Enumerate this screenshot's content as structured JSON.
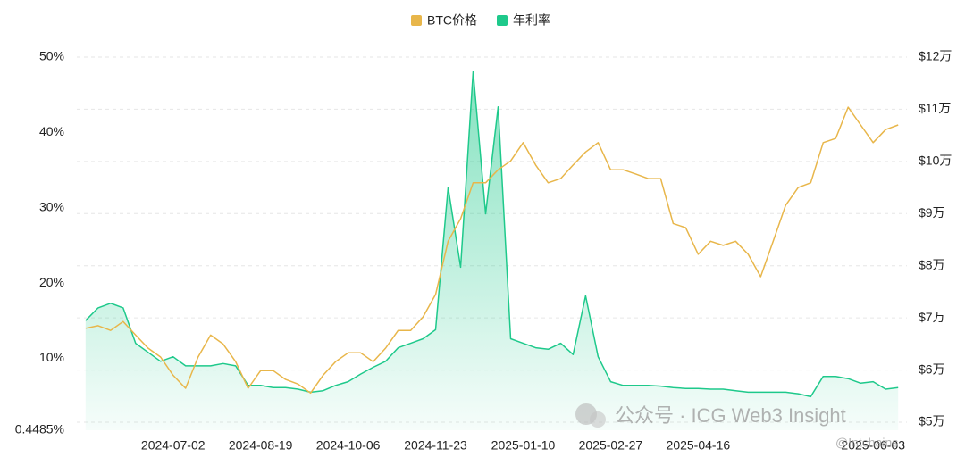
{
  "chart_data": {
    "type": "line",
    "categories": [
      null,
      null,
      null,
      null,
      null,
      null,
      null,
      "2024-07-02",
      null,
      null,
      null,
      null,
      null,
      null,
      "2024-08-19",
      null,
      null,
      null,
      null,
      null,
      null,
      "2024-10-06",
      null,
      null,
      null,
      null,
      null,
      null,
      "2024-11-23",
      null,
      null,
      null,
      null,
      null,
      null,
      "2025-01-10",
      null,
      null,
      null,
      null,
      null,
      null,
      "2025-02-27",
      null,
      null,
      null,
      null,
      null,
      null,
      "2025-04-16",
      null,
      null,
      null,
      null,
      null,
      null,
      null,
      null,
      null,
      null,
      null,
      null,
      null,
      "2025-06-03",
      null,
      null
    ],
    "series": [
      {
        "name": "BTC价格",
        "color": "#e8b64a",
        "axis": "y2",
        "values": [
          68000,
          68500,
          67600,
          69300,
          66700,
          64200,
          62500,
          59000,
          56500,
          62500,
          66700,
          65000,
          61600,
          56500,
          59900,
          59900,
          58200,
          57300,
          55600,
          59000,
          61600,
          63300,
          63300,
          61600,
          64200,
          67600,
          67600,
          70200,
          74500,
          84700,
          89000,
          95900,
          95900,
          98400,
          100100,
          103600,
          99300,
          95900,
          96700,
          99300,
          101800,
          103600,
          98400,
          98400,
          97600,
          96700,
          96700,
          88100,
          87300,
          82200,
          84700,
          83900,
          84700,
          82200,
          77900,
          84700,
          91600,
          95000,
          95900,
          103600,
          104400,
          110400,
          107000,
          103600,
          106100,
          107000
        ]
      },
      {
        "name": "年利率",
        "color": "#1ec98b",
        "values": [
          15.0,
          16.7,
          17.3,
          16.7,
          12.0,
          10.8,
          9.6,
          10.2,
          9.0,
          9.0,
          9.0,
          9.3,
          9.0,
          6.4,
          6.4,
          6.1,
          6.1,
          5.9,
          5.5,
          5.7,
          6.4,
          6.9,
          7.9,
          8.8,
          9.6,
          11.4,
          12.0,
          12.6,
          13.8,
          32.7,
          22.1,
          48.1,
          29.2,
          43.4,
          12.6,
          12.0,
          11.4,
          11.2,
          12.0,
          10.5,
          18.3,
          10.2,
          6.9,
          6.4,
          6.4,
          6.4,
          6.3,
          6.1,
          6.0,
          6.0,
          5.9,
          5.9,
          5.7,
          5.5,
          5.5,
          5.5,
          5.5,
          5.3,
          4.9,
          7.6,
          7.6,
          7.3,
          6.7,
          6.9,
          5.9,
          6.1
        ]
      }
    ],
    "ylim": [
      0.4485,
      50
    ],
    "yticks": [
      {
        "value": 0.4485,
        "label": "0.4485%"
      },
      {
        "value": 10,
        "label": "10%"
      },
      {
        "value": 20,
        "label": "20%"
      },
      {
        "value": 30,
        "label": "30%"
      },
      {
        "value": 40,
        "label": "40%"
      },
      {
        "value": 50,
        "label": "50%"
      }
    ],
    "y2lim": [
      48460,
      120000
    ],
    "y2ticks": [
      {
        "value": 50000,
        "label": "$5万"
      },
      {
        "value": 60000,
        "label": "$6万"
      },
      {
        "value": 70000,
        "label": "$7万"
      },
      {
        "value": 80000,
        "label": "$8万"
      },
      {
        "value": 90000,
        "label": "$9万"
      },
      {
        "value": 100000,
        "label": "$10万"
      },
      {
        "value": 110000,
        "label": "$11万"
      },
      {
        "value": 120000,
        "label": "$12万"
      }
    ],
    "grid": true,
    "legend": "top",
    "annotations": [
      "公众号 · ICG Web3 Insight",
      "@Intchains"
    ]
  }
}
